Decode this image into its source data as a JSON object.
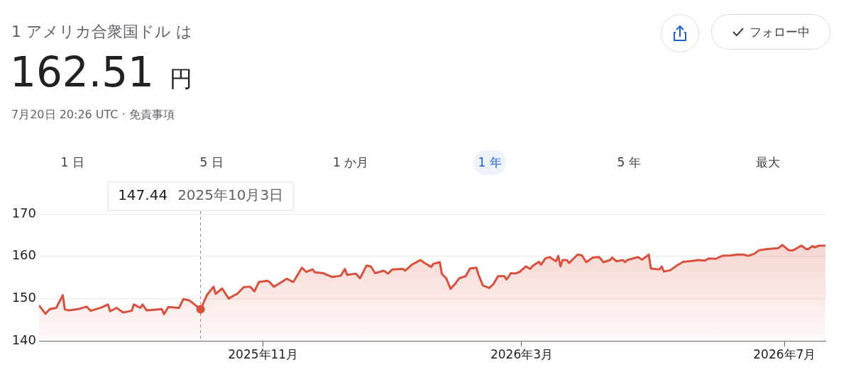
{
  "chart_data": {
    "type": "area",
    "title": "1 アメリカ合衆国ドル は",
    "subtitle": "162.51 円",
    "annotations": [
      "7月20日 20:26 UTC · 免責事項",
      "1 日",
      "5 日",
      "1 か月",
      "1 年",
      "5 年",
      "最大",
      "フォロー中",
      "147.44 2025年10月3日"
    ],
    "x": [
      "2025-07-20",
      "2025-07-23",
      "2025-07-25",
      "2025-07-28",
      "2025-07-31",
      "2025-08-01",
      "2025-08-03",
      "2025-08-08",
      "2025-08-11",
      "2025-08-13",
      "2025-08-18",
      "2025-08-21",
      "2025-08-22",
      "2025-08-25",
      "2025-08-28",
      "2025-09-01",
      "2025-09-02",
      "2025-09-05",
      "2025-09-06",
      "2025-09-08",
      "2025-09-15",
      "2025-09-16",
      "2025-09-18",
      "2025-09-23",
      "2025-09-25",
      "2025-09-28",
      "2025-10-03",
      "2025-10-06",
      "2025-10-09",
      "2025-10-10",
      "2025-10-13",
      "2025-10-16",
      "2025-10-19",
      "2025-10-20",
      "2025-10-23",
      "2025-10-26",
      "2025-10-28",
      "2025-10-30",
      "2025-11-03",
      "2025-11-04",
      "2025-11-06",
      "2025-11-09",
      "2025-11-12",
      "2025-11-15",
      "2025-11-19",
      "2025-11-21",
      "2025-11-24",
      "2025-11-25",
      "2025-11-29",
      "2025-12-03",
      "2025-12-07",
      "2025-12-09",
      "2025-12-10",
      "2025-12-14",
      "2025-12-16",
      "2025-12-19",
      "2025-12-21",
      "2025-12-23",
      "2025-12-27",
      "2025-12-29",
      "2025-12-31",
      "2026-01-05",
      "2026-01-06",
      "2026-01-09",
      "2026-01-13",
      "2026-01-15",
      "2026-01-18",
      "2026-01-19",
      "2026-01-22",
      "2026-01-23",
      "2026-01-25",
      "2026-01-27",
      "2026-01-29",
      "2026-01-31",
      "2026-02-03",
      "2026-02-05",
      "2026-02-08",
      "2026-02-09",
      "2026-02-11",
      "2026-02-14",
      "2026-02-16",
      "2026-02-18",
      "2026-02-21",
      "2026-02-22",
      "2026-02-24",
      "2026-02-26",
      "2026-02-28",
      "2026-03-03",
      "2026-03-05",
      "2026-03-06",
      "2026-03-09",
      "2026-03-10",
      "2026-03-12",
      "2026-03-14",
      "2026-03-16",
      "2026-03-17",
      "2026-03-18",
      "2026-03-19",
      "2026-03-20",
      "2026-03-22",
      "2026-03-23",
      "2026-03-27",
      "2026-03-29",
      "2026-03-31",
      "2026-04-03",
      "2026-04-06",
      "2026-04-08",
      "2026-04-11",
      "2026-04-12",
      "2026-04-14",
      "2026-04-17",
      "2026-04-18",
      "2026-04-19",
      "2026-04-24",
      "2026-04-26",
      "2026-04-29",
      "2026-04-30",
      "2026-05-04",
      "2026-05-05",
      "2026-05-06",
      "2026-05-09",
      "2026-05-12",
      "2026-05-15",
      "2026-05-19",
      "2026-05-22",
      "2026-05-25",
      "2026-05-27",
      "2026-05-30",
      "2026-06-02",
      "2026-06-06",
      "2026-06-09",
      "2026-06-12",
      "2026-06-14",
      "2026-06-17",
      "2026-06-19",
      "2026-06-23",
      "2026-06-28",
      "2026-06-30",
      "2026-07-03",
      "2026-07-05",
      "2026-07-08",
      "2026-07-09",
      "2026-07-11",
      "2026-07-12",
      "2026-07-14",
      "2026-07-15",
      "2026-07-17",
      "2026-07-20"
    ],
    "series": [
      {
        "color": "#d9503f",
        "values": [
          148.4,
          146.4,
          147.5,
          147.8,
          150.8,
          147.4,
          147.2,
          147.6,
          148.1,
          147.1,
          147.9,
          148.6,
          147.0,
          147.8,
          146.7,
          147.1,
          148.6,
          147.8,
          148.6,
          147.2,
          147.5,
          146.3,
          148.0,
          147.8,
          149.9,
          149.5,
          147.44,
          150.9,
          152.8,
          151.1,
          152.4,
          150.0,
          150.9,
          151.1,
          152.7,
          152.8,
          151.7,
          153.9,
          154.2,
          153.9,
          152.8,
          153.7,
          154.7,
          153.9,
          157.3,
          156.3,
          156.9,
          156.2,
          156.0,
          155.1,
          155.4,
          157.0,
          155.6,
          155.9,
          154.8,
          157.8,
          157.6,
          156.0,
          156.6,
          155.9,
          156.9,
          157.0,
          156.6,
          158.0,
          159.1,
          158.4,
          157.5,
          158.2,
          158.6,
          155.8,
          154.8,
          152.3,
          153.4,
          154.8,
          155.3,
          157.1,
          157.3,
          155.6,
          153.1,
          152.5,
          153.5,
          155.3,
          155.3,
          154.5,
          156.0,
          155.9,
          156.3,
          157.6,
          157.0,
          157.7,
          158.7,
          158.0,
          159.5,
          159.8,
          159.1,
          158.8,
          160.1,
          157.6,
          159.1,
          159.1,
          158.4,
          160.4,
          160.2,
          158.6,
          159.7,
          159.8,
          158.6,
          159.1,
          159.7,
          158.8,
          159.1,
          158.6,
          159.1,
          159.8,
          159.2,
          160.4,
          157.1,
          156.9,
          157.6,
          156.4,
          156.7,
          157.8,
          158.7,
          158.9,
          159.1,
          159.0,
          159.5,
          159.4,
          160.1,
          160.2,
          160.4,
          160.4,
          160.1,
          160.6,
          161.4,
          161.7,
          161.9,
          162.7,
          161.4,
          161.4,
          162.3,
          162.5,
          161.7,
          161.7,
          162.4,
          162.1,
          162.5,
          162.51
        ]
      }
    ],
    "xlim": [
      "2025-07-20",
      "2026-07-20"
    ],
    "xticks": [
      {
        "value": "2025-11-01",
        "label": "2025年11月"
      },
      {
        "value": "2026-03-01",
        "label": "2026年3月"
      },
      {
        "value": "2026-07-01",
        "label": "2026年7月"
      }
    ],
    "ylim": [
      140,
      170
    ],
    "yticks": [
      140,
      150,
      160,
      170
    ],
    "grid": "y",
    "marker": "none",
    "line_style": "solid",
    "ref_lines": [
      {
        "axis": "x",
        "value": "2025-10-03",
        "color": "#888888",
        "line_style": "dashed"
      }
    ]
  }
}
